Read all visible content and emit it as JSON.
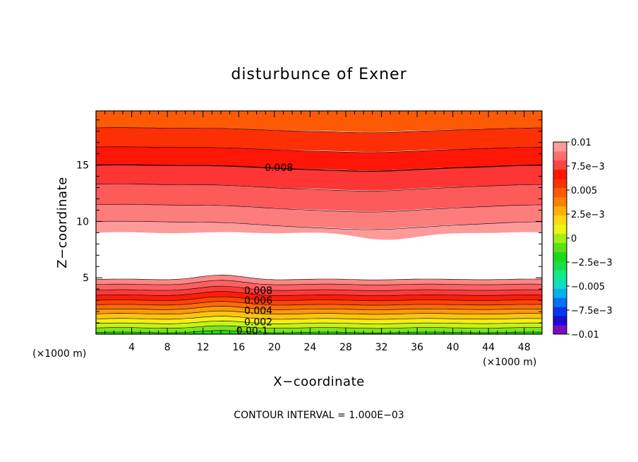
{
  "chart_data": {
    "type": "filled_contour",
    "title": "disturbunce of Exner",
    "xlabel": "X−coordinate",
    "ylabel": "Z−coordinate",
    "x_unit": "(×1000 m)",
    "y_unit": "(×1000 m)",
    "xlim": [
      0,
      50
    ],
    "ylim": [
      0,
      19.8
    ],
    "x_ticks": [
      4,
      8,
      12,
      16,
      20,
      24,
      28,
      32,
      36,
      40,
      44,
      48
    ],
    "y_ticks": [
      5,
      10,
      15
    ],
    "contour_interval_text": "CONTOUR INTERVAL = 1.000E−03",
    "colorbar": {
      "range": [
        -0.01,
        0.01
      ],
      "tick_values": [
        0.01,
        0.0075,
        0.005,
        0.0025,
        0,
        -0.0025,
        -0.005,
        -0.0075,
        -0.01
      ],
      "tick_labels": [
        "0.01",
        "7.5e−3",
        "0.005",
        "2.5e−3",
        "0",
        "−2.5e−3",
        "−0.005",
        "−7.5e−3",
        "−0.01"
      ],
      "colors": [
        "#7a0dbf",
        "#1a0dd0",
        "#0a35ea",
        "#0a72f2",
        "#0ab0ea",
        "#10dcc0",
        "#15e98c",
        "#18e04a",
        "#1ed81a",
        "#5ce018",
        "#a8ec14",
        "#eaf514",
        "#fdd810",
        "#fdb00c",
        "#fc8206",
        "#fd5a06",
        "#fd2f05",
        "#ff1606",
        "#fd4242",
        "#fd6e6e",
        "#fd9a9a"
      ]
    },
    "band_colors": [
      "#25d61e",
      "#7de41c",
      "#c7f218",
      "#f5ef14",
      "#fcc410",
      "#fd980a",
      "#fd6c06",
      "#fd4405",
      "#fe1d07",
      "#fd3a3a",
      "#fd6161",
      "#fd8686",
      "#ffffff"
    ],
    "lower_levels": [
      0.0,
      0.001,
      0.002,
      0.003,
      0.004,
      0.005,
      0.006,
      0.007,
      0.008,
      0.009,
      0.01,
      0.011
    ],
    "lower_heights_km": [
      0.15,
      0.55,
      0.95,
      1.35,
      1.8,
      2.2,
      2.6,
      3.0,
      3.45,
      3.9,
      4.4,
      4.85
    ],
    "upper_bands": [
      {
        "top": 19.8,
        "bottom": 18.3,
        "color": "#fd5a06"
      },
      {
        "top": 18.3,
        "bottom": 16.6,
        "color": "#fd2f05"
      },
      {
        "top": 16.6,
        "bottom": 15.0,
        "color": "#ff1606"
      },
      {
        "top": 15.0,
        "bottom": 13.3,
        "color": "#fd3535"
      },
      {
        "top": 13.3,
        "bottom": 11.5,
        "color": "#fd5a5a"
      },
      {
        "top": 11.5,
        "bottom": 10.0,
        "color": "#fd7c7c"
      },
      {
        "top": 10.0,
        "bottom": 9.0,
        "color": "#fe9a9a"
      }
    ],
    "contour_labels": [
      {
        "text": "0.008",
        "x": 20.5,
        "y": 14.8
      },
      {
        "text": "0.008",
        "x": 18.2,
        "y": 3.9
      },
      {
        "text": "0.006",
        "x": 18.2,
        "y": 3.0
      },
      {
        "text": "0.004",
        "x": 18.2,
        "y": 2.1
      },
      {
        "text": "0.002",
        "x": 18.2,
        "y": 1.1
      },
      {
        "text": "0.00‐1",
        "x": 17.5,
        "y": 0.3
      }
    ]
  }
}
